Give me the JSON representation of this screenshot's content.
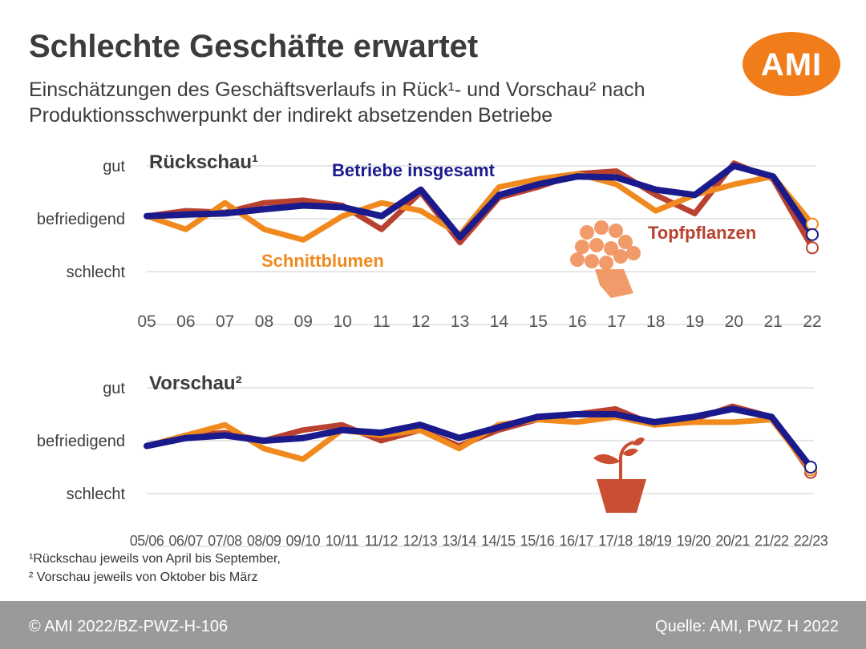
{
  "header": {
    "title": "Schlechte Geschäfte erwartet",
    "subtitle_line1": "Einschätzungen des Geschäftsverlaufs in Rück¹- und Vorschau² nach",
    "subtitle_line2": "Produktionsschwerpunkt der indirekt absetzenden Betriebe",
    "logo_text": "AMI"
  },
  "colors": {
    "betriebe": "#1a1a8c",
    "schnittblumen": "#f08a1e",
    "topfpflanzen": "#b84130",
    "grid": "#dddddd",
    "text": "#3c3c3c"
  },
  "chart_data": [
    {
      "type": "line",
      "title": "Rückschau¹",
      "y_categories": [
        "gut",
        "befriedigend",
        "schlecht"
      ],
      "ylim": [
        -1.7,
        1.2
      ],
      "grid": true,
      "categories": [
        "05",
        "06",
        "07",
        "08",
        "09",
        "10",
        "11",
        "12",
        "13",
        "14",
        "15",
        "16",
        "17",
        "18",
        "19",
        "20",
        "21",
        "22"
      ],
      "series": [
        {
          "name": "Topfpflanzen",
          "color": "#b84130",
          "values": [
            0.05,
            0.15,
            0.12,
            0.3,
            0.35,
            0.25,
            -0.2,
            0.5,
            -0.45,
            0.4,
            0.6,
            0.85,
            0.9,
            0.45,
            0.1,
            1.05,
            0.75,
            -0.55
          ]
        },
        {
          "name": "Schnittblumen",
          "color": "#f08a1e",
          "values": [
            0.05,
            -0.2,
            0.3,
            -0.2,
            -0.4,
            0.05,
            0.3,
            0.15,
            -0.3,
            0.6,
            0.75,
            0.85,
            0.65,
            0.15,
            0.45,
            0.65,
            0.8,
            -0.1
          ]
        },
        {
          "name": "Betriebe insgesamt",
          "color": "#1a1a8c",
          "values": [
            0.05,
            0.08,
            0.1,
            0.18,
            0.25,
            0.22,
            0.05,
            0.55,
            -0.35,
            0.45,
            0.65,
            0.8,
            0.78,
            0.55,
            0.45,
            1.0,
            0.8,
            -0.3
          ]
        }
      ]
    },
    {
      "type": "line",
      "title": "Vorschau²",
      "y_categories": [
        "gut",
        "befriedigend",
        "schlecht"
      ],
      "ylim": [
        -1.3,
        1.5
      ],
      "grid": true,
      "categories": [
        "05/06",
        "06/07",
        "07/08",
        "08/09",
        "09/10",
        "10/11",
        "11/12",
        "12/13",
        "13/14",
        "14/15",
        "15/16",
        "16/17",
        "17/18",
        "18/19",
        "19/20",
        "20/21",
        "21/22",
        "22/23"
      ],
      "series": [
        {
          "name": "Topfpflanzen",
          "color": "#b84130",
          "values": [
            -0.1,
            0.1,
            0.15,
            0.0,
            0.2,
            0.3,
            0.0,
            0.2,
            -0.1,
            0.2,
            0.4,
            0.5,
            0.6,
            0.3,
            0.4,
            0.65,
            0.45,
            -0.6
          ]
        },
        {
          "name": "Schnittblumen",
          "color": "#f08a1e",
          "values": [
            -0.1,
            0.1,
            0.3,
            -0.15,
            -0.35,
            0.2,
            0.1,
            0.2,
            -0.15,
            0.3,
            0.4,
            0.35,
            0.45,
            0.3,
            0.35,
            0.35,
            0.4,
            -0.55
          ]
        },
        {
          "name": "Betriebe insgesamt",
          "color": "#1a1a8c",
          "values": [
            -0.1,
            0.05,
            0.1,
            0.0,
            0.05,
            0.2,
            0.15,
            0.3,
            0.05,
            0.25,
            0.45,
            0.5,
            0.5,
            0.35,
            0.45,
            0.6,
            0.45,
            -0.5
          ]
        }
      ]
    }
  ],
  "labels": {
    "rueckschau_title": "Rückschau¹",
    "vorschau_title": "Vorschau²",
    "betriebe": "Betriebe insgesamt",
    "schnittblumen": "Schnittblumen",
    "topfpflanzen": "Topfpflanzen"
  },
  "notes": {
    "note1": "¹Rückschau jeweils von April bis September,",
    "note2": "² Vorschau jeweils von Oktober bis März"
  },
  "footer": {
    "left": "© AMI 2022/BZ-PWZ-H-106",
    "right": "Quelle: AMI, PWZ H 2022"
  }
}
